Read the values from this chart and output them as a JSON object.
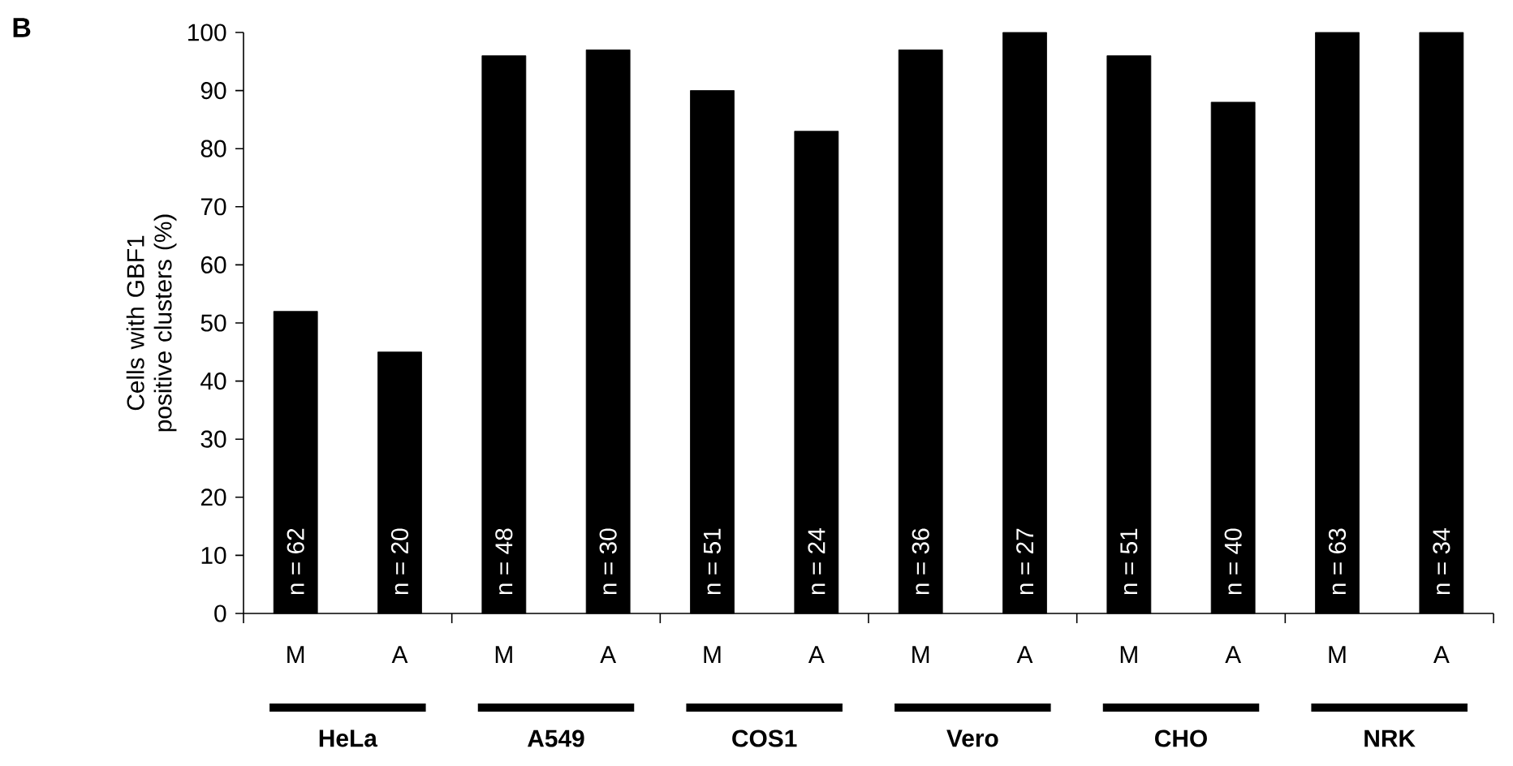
{
  "chart_data": {
    "type": "bar",
    "ylabel": "Cells with GBF1 positive clusters (%)",
    "categories": [
      "M",
      "A",
      "M",
      "A",
      "M",
      "A",
      "M",
      "A",
      "M",
      "A",
      "M",
      "A"
    ],
    "values": [
      52,
      45,
      96,
      97,
      90,
      83,
      97,
      100,
      96,
      88,
      100,
      100
    ],
    "color": "#000000",
    "ylim": [
      0,
      100
    ],
    "yticks": [
      0,
      10,
      20,
      30,
      40,
      50,
      60,
      70,
      80,
      90,
      100
    ],
    "grid": false,
    "annotations": [
      "B",
      "HeLa",
      "A549",
      "COS1",
      "Vero",
      "CHO",
      "NRK",
      "n = 62",
      "n = 20",
      "n = 48",
      "n = 30",
      "n = 51",
      "n = 24",
      "n = 36",
      "n = 27",
      "n = 51",
      "n = 40",
      "n = 63",
      "n = 34"
    ]
  }
}
